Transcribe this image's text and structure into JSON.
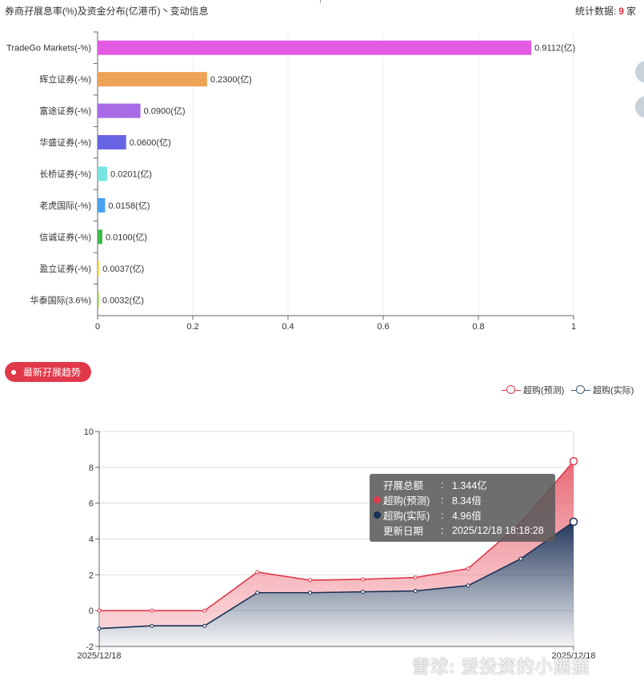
{
  "header": {
    "title": "券商孖展息率(%)及资金分布(亿港币)丶变动信息",
    "count_prefix": "统计数据:",
    "count_value": "9",
    "count_suffix": "家"
  },
  "section": {
    "trend_label": "最新孖展趋势"
  },
  "legend": {
    "items": [
      {
        "label": "超购(预测)",
        "color": "#e0394a"
      },
      {
        "label": "超购(实际)",
        "color": "#3d5a7a"
      }
    ]
  },
  "tooltip": {
    "rows": [
      {
        "key": "孖展总额",
        "sep": ":",
        "value": "1.344亿",
        "dot": ""
      },
      {
        "key": "超购(预测)",
        "sep": ":",
        "value": "8.34倍",
        "dot": "#e0394a"
      },
      {
        "key": "超购(实际)",
        "sep": ":",
        "value": "4.96倍",
        "dot": "#1a2f55"
      },
      {
        "key": "更新日期",
        "sep": ":",
        "value": "2025/12/18 18:18:28",
        "dot": ""
      }
    ]
  },
  "watermark": "雪球: 爱投资的小熊猫",
  "chart_data": [
    {
      "type": "bar",
      "orientation": "horizontal",
      "categories": [
        "TradeGo Markets(-%)",
        "辉立证券(-%)",
        "富途证券(-%)",
        "华盛证券(-%)",
        "长桥证券(-%)",
        "老虎国际(-%)",
        "信诚证券(-%)",
        "盈立证券(-%)",
        "华泰国际(3.6%)"
      ],
      "values": [
        0.9112,
        0.23,
        0.09,
        0.06,
        0.0201,
        0.0158,
        0.01,
        0.0037,
        0.0032
      ],
      "value_labels": [
        "0.9112(亿)",
        "0.2300(亿)",
        "0.0900(亿)",
        "0.0600(亿)",
        "0.0201(亿)",
        "0.0158(亿)",
        "0.0100(亿)",
        "0.0037(亿)",
        "0.0032(亿)"
      ],
      "colors": [
        "#e35ae3",
        "#eea255",
        "#a96ae6",
        "#6764e4",
        "#76e3e0",
        "#4aa3f0",
        "#3cba4a",
        "#f0e05a",
        "#a8d86a"
      ],
      "xlim": [
        0,
        1
      ],
      "xticks": [
        "0",
        "0.2",
        "0.4",
        "0.6",
        "0.8",
        "1"
      ],
      "grid": true
    },
    {
      "type": "area",
      "x_tick_labels": [
        "2025/12/18",
        "2025/12/18"
      ],
      "ylim": [
        -2,
        10
      ],
      "yticks": [
        "-2",
        "0",
        "2",
        "4",
        "6",
        "8",
        "10"
      ],
      "series": [
        {
          "name": "超购(预测)",
          "color": "#e0394a",
          "values": [
            0,
            0,
            0,
            2.15,
            1.7,
            1.75,
            1.85,
            2.35,
            4.9,
            8.34
          ]
        },
        {
          "name": "超购(实际)",
          "color": "#1a2f55",
          "values": [
            -1.0,
            -0.85,
            -0.85,
            1.0,
            1.0,
            1.05,
            1.1,
            1.4,
            2.9,
            4.96
          ]
        }
      ],
      "grid": true
    }
  ]
}
